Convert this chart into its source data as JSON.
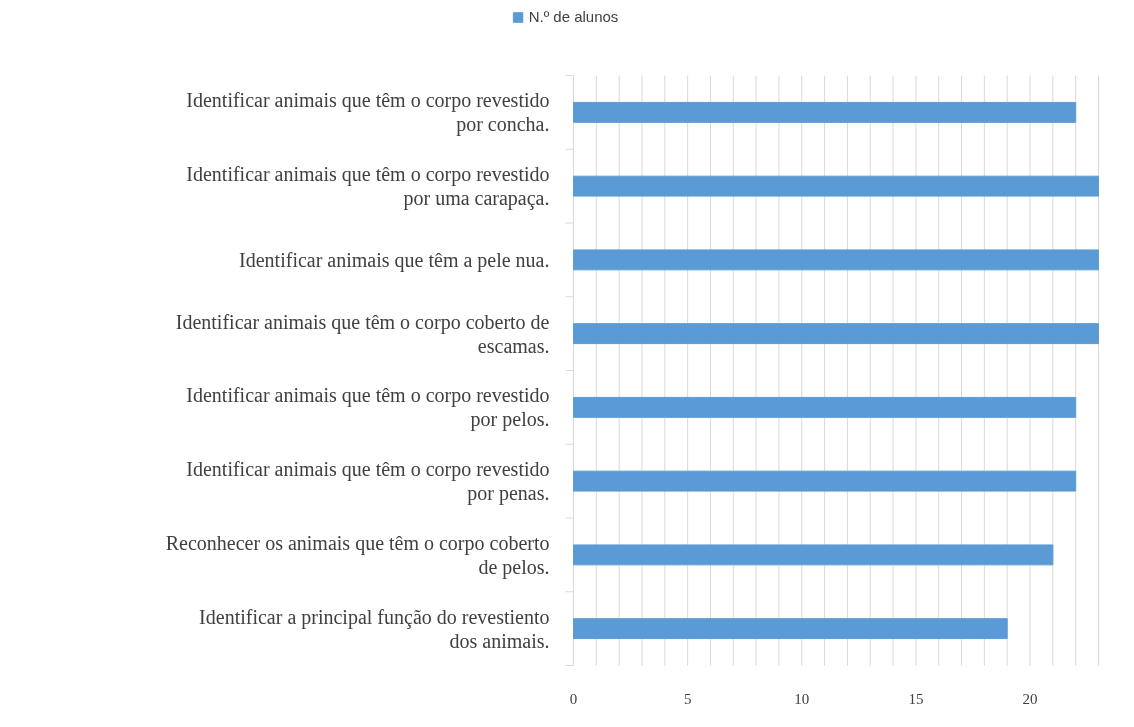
{
  "chart_data": {
    "type": "bar",
    "orientation": "horizontal",
    "categories": [
      "Identificar animais que têm o corpo revestido por concha.",
      "Identificar animais que têm o corpo revestido por uma carapaça.",
      "Identificar animais que têm a pele nua.",
      "Identificar animais que têm o corpo coberto de escamas.",
      "Identificar animais que têm o corpo revestido por pelos.",
      "Identificar animais que têm o corpo revestido por penas.",
      "Reconhecer os animais que têm o corpo coberto de pelos.",
      "Identificar a principal função do revestiento dos animais."
    ],
    "series": [
      {
        "name": "N.º de alunos",
        "color": "#5b9bd5",
        "values": [
          22,
          23,
          23,
          23,
          22,
          22,
          21,
          19
        ]
      }
    ],
    "xlim": [
      0,
      23
    ],
    "xticks": [
      0,
      5,
      10,
      15,
      20
    ],
    "grid": "x",
    "legend": "top"
  }
}
